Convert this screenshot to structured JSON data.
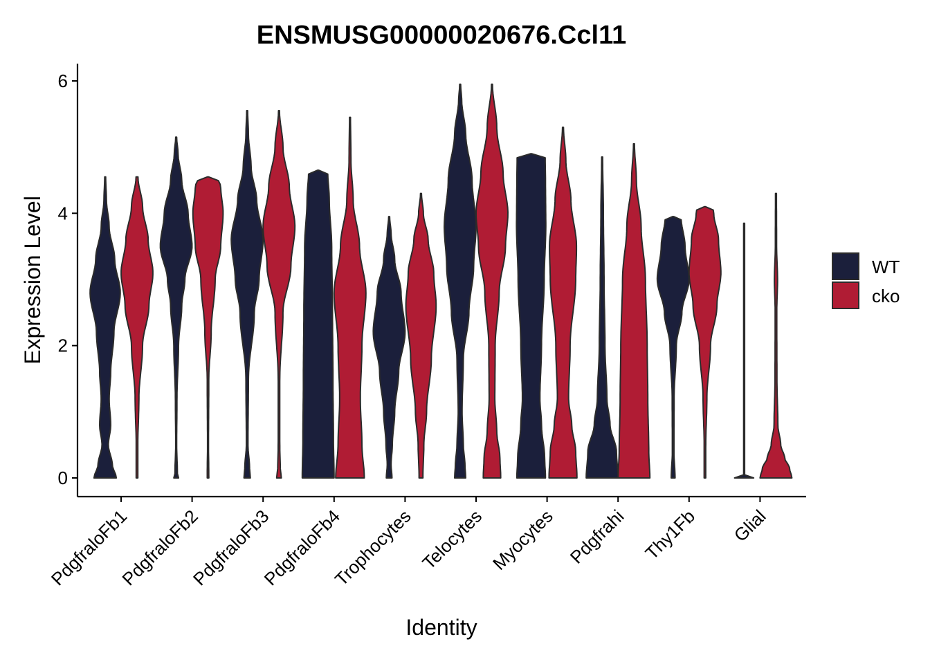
{
  "chart_data": {
    "type": "violin",
    "title": "ENSMUSG00000020676.Ccl11",
    "xlabel": "Identity",
    "ylabel": "Expression Level",
    "ylim": [
      -0.3,
      6.3
    ],
    "yticks": [
      0,
      2,
      4,
      6
    ],
    "grid": false,
    "legend_position": "right",
    "categories": [
      "PdgfraloFb1",
      "PdgfraloFb2",
      "PdgfraloFb3",
      "PdgfraloFb4",
      "Trophocytes",
      "Telocytes",
      "Myocytes",
      "Pdgfrahi",
      "Thy1Fb",
      "Glial"
    ],
    "series": [
      {
        "name": "WT",
        "color": "#1b1f3b",
        "violins": [
          {
            "max": 4.55,
            "profile": [
              [
                0,
                0.7
              ],
              [
                0.2,
                0.45
              ],
              [
                0.5,
                0.2
              ],
              [
                0.8,
                0.35
              ],
              [
                1.2,
                0.25
              ],
              [
                1.6,
                0.35
              ],
              [
                2.2,
                0.55
              ],
              [
                2.8,
                0.95
              ],
              [
                3.3,
                0.6
              ],
              [
                3.8,
                0.25
              ],
              [
                4.2,
                0.08
              ],
              [
                4.55,
                0.03
              ]
            ]
          },
          {
            "max": 5.15,
            "profile": [
              [
                0,
                0.15
              ],
              [
                0.05,
                0.08
              ],
              [
                0.5,
                0.03
              ],
              [
                1.2,
                0.05
              ],
              [
                2.0,
                0.15
              ],
              [
                2.6,
                0.35
              ],
              [
                3.0,
                0.55
              ],
              [
                3.5,
                1.0
              ],
              [
                4.0,
                0.75
              ],
              [
                4.5,
                0.35
              ],
              [
                4.9,
                0.12
              ],
              [
                5.15,
                0.03
              ]
            ]
          },
          {
            "max": 5.55,
            "profile": [
              [
                0,
                0.2
              ],
              [
                0.15,
                0.15
              ],
              [
                0.5,
                0.05
              ],
              [
                1.5,
                0.08
              ],
              [
                2.5,
                0.45
              ],
              [
                3.0,
                0.75
              ],
              [
                3.6,
                1.0
              ],
              [
                4.2,
                0.6
              ],
              [
                4.7,
                0.25
              ],
              [
                5.2,
                0.08
              ],
              [
                5.55,
                0.03
              ]
            ]
          },
          {
            "max": 4.65,
            "profile": [
              [
                0,
                1.0
              ],
              [
                0.6,
                0.96
              ],
              [
                1.5,
                0.93
              ],
              [
                2.5,
                0.9
              ],
              [
                3.5,
                0.85
              ],
              [
                4.2,
                0.7
              ],
              [
                4.64,
                0.6
              ],
              [
                4.65,
                0.03
              ]
            ]
          },
          {
            "max": 3.95,
            "profile": [
              [
                0,
                0.18
              ],
              [
                0.2,
                0.12
              ],
              [
                0.5,
                0.2
              ],
              [
                1.0,
                0.35
              ],
              [
                1.6,
                0.6
              ],
              [
                2.2,
                1.0
              ],
              [
                2.8,
                0.75
              ],
              [
                3.3,
                0.35
              ],
              [
                3.7,
                0.12
              ],
              [
                3.95,
                0.03
              ]
            ]
          },
          {
            "max": 5.95,
            "profile": [
              [
                0,
                0.35
              ],
              [
                0.2,
                0.3
              ],
              [
                0.5,
                0.2
              ],
              [
                1.0,
                0.12
              ],
              [
                1.8,
                0.2
              ],
              [
                2.5,
                0.55
              ],
              [
                3.2,
                0.85
              ],
              [
                3.8,
                1.0
              ],
              [
                4.5,
                0.75
              ],
              [
                5.2,
                0.35
              ],
              [
                5.7,
                0.1
              ],
              [
                5.95,
                0.03
              ]
            ]
          },
          {
            "max": 4.9,
            "profile": [
              [
                0,
                0.9
              ],
              [
                0.3,
                0.85
              ],
              [
                0.8,
                0.65
              ],
              [
                1.2,
                0.55
              ],
              [
                2.0,
                0.65
              ],
              [
                3.0,
                0.82
              ],
              [
                3.8,
                0.92
              ],
              [
                4.5,
                0.9
              ],
              [
                4.89,
                0.88
              ],
              [
                4.9,
                0.03
              ]
            ]
          },
          {
            "max": 4.85,
            "profile": [
              [
                0,
                1.0
              ],
              [
                0.4,
                0.9
              ],
              [
                0.8,
                0.5
              ],
              [
                1.2,
                0.3
              ],
              [
                2.0,
                0.18
              ],
              [
                3.0,
                0.12
              ],
              [
                4.0,
                0.08
              ],
              [
                4.85,
                0.03
              ]
            ]
          },
          {
            "max": 3.95,
            "profile": [
              [
                0,
                0.12
              ],
              [
                0.4,
                0.05
              ],
              [
                1.2,
                0.06
              ],
              [
                2.0,
                0.2
              ],
              [
                2.5,
                0.55
              ],
              [
                3.0,
                1.0
              ],
              [
                3.5,
                0.75
              ],
              [
                3.94,
                0.5
              ],
              [
                3.95,
                0.03
              ]
            ]
          },
          {
            "max": 3.85,
            "profile": [
              [
                0,
                0.6
              ],
              [
                0.015,
                0.6
              ],
              [
                0.03,
                0.03
              ],
              [
                3.85,
                0.03
              ]
            ]
          }
        ]
      },
      {
        "name": "cko",
        "color": "#b01c34",
        "violins": [
          {
            "max": 4.55,
            "profile": [
              [
                0,
                0.05
              ],
              [
                0.5,
                0.05
              ],
              [
                1.2,
                0.12
              ],
              [
                2.0,
                0.35
              ],
              [
                2.6,
                0.75
              ],
              [
                3.1,
                1.0
              ],
              [
                3.6,
                0.7
              ],
              [
                4.1,
                0.35
              ],
              [
                4.55,
                0.06
              ]
            ]
          },
          {
            "max": 4.55,
            "profile": [
              [
                0,
                0.05
              ],
              [
                0.5,
                0.03
              ],
              [
                1.5,
                0.05
              ],
              [
                2.2,
                0.2
              ],
              [
                3.0,
                0.45
              ],
              [
                3.5,
                0.8
              ],
              [
                4.0,
                0.95
              ],
              [
                4.4,
                0.8
              ],
              [
                4.54,
                0.6
              ],
              [
                4.55,
                0.03
              ]
            ]
          },
          {
            "max": 5.55,
            "profile": [
              [
                0,
                0.15
              ],
              [
                0.15,
                0.08
              ],
              [
                0.5,
                0.05
              ],
              [
                1.5,
                0.05
              ],
              [
                2.5,
                0.25
              ],
              [
                3.2,
                0.75
              ],
              [
                3.8,
                1.0
              ],
              [
                4.4,
                0.65
              ],
              [
                5.0,
                0.25
              ],
              [
                5.55,
                0.03
              ]
            ]
          },
          {
            "max": 5.45,
            "profile": [
              [
                0,
                0.9
              ],
              [
                0.5,
                0.75
              ],
              [
                1.2,
                0.65
              ],
              [
                2.0,
                0.75
              ],
              [
                2.8,
                1.0
              ],
              [
                3.5,
                0.6
              ],
              [
                4.2,
                0.2
              ],
              [
                4.8,
                0.06
              ],
              [
                5.45,
                0.03
              ]
            ]
          },
          {
            "max": 4.3,
            "profile": [
              [
                0,
                0.12
              ],
              [
                0.5,
                0.18
              ],
              [
                1.0,
                0.35
              ],
              [
                1.8,
                0.65
              ],
              [
                2.6,
                0.95
              ],
              [
                3.1,
                0.8
              ],
              [
                3.6,
                0.45
              ],
              [
                4.0,
                0.15
              ],
              [
                4.3,
                0.03
              ]
            ]
          },
          {
            "max": 5.95,
            "profile": [
              [
                0,
                0.55
              ],
              [
                0.3,
                0.5
              ],
              [
                0.7,
                0.3
              ],
              [
                1.2,
                0.18
              ],
              [
                2.0,
                0.2
              ],
              [
                2.8,
                0.45
              ],
              [
                3.5,
                0.85
              ],
              [
                4.0,
                1.0
              ],
              [
                4.6,
                0.7
              ],
              [
                5.3,
                0.3
              ],
              [
                5.95,
                0.03
              ]
            ]
          },
          {
            "max": 5.3,
            "profile": [
              [
                0,
                0.88
              ],
              [
                0.4,
                0.8
              ],
              [
                0.8,
                0.55
              ],
              [
                1.2,
                0.35
              ],
              [
                2.0,
                0.45
              ],
              [
                3.0,
                0.8
              ],
              [
                3.5,
                0.85
              ],
              [
                4.2,
                0.5
              ],
              [
                4.8,
                0.18
              ],
              [
                5.3,
                0.03
              ]
            ]
          },
          {
            "max": 5.05,
            "profile": [
              [
                0,
                1.0
              ],
              [
                0.4,
                0.93
              ],
              [
                1.2,
                0.87
              ],
              [
                2.0,
                0.83
              ],
              [
                3.0,
                0.72
              ],
              [
                3.8,
                0.45
              ],
              [
                4.5,
                0.15
              ],
              [
                5.05,
                0.03
              ]
            ]
          },
          {
            "max": 4.1,
            "profile": [
              [
                0,
                0.05
              ],
              [
                0.5,
                0.05
              ],
              [
                1.2,
                0.12
              ],
              [
                2.0,
                0.35
              ],
              [
                2.6,
                0.75
              ],
              [
                3.1,
                1.0
              ],
              [
                3.6,
                0.85
              ],
              [
                4.0,
                0.55
              ],
              [
                4.09,
                0.5
              ],
              [
                4.1,
                0.03
              ]
            ]
          },
          {
            "max": 4.3,
            "profile": [
              [
                0,
                1.0
              ],
              [
                0.15,
                0.85
              ],
              [
                0.3,
                0.55
              ],
              [
                0.5,
                0.3
              ],
              [
                0.8,
                0.12
              ],
              [
                1.5,
                0.06
              ],
              [
                2.5,
                0.05
              ],
              [
                3.0,
                0.1
              ],
              [
                3.5,
                0.04
              ],
              [
                4.3,
                0.03
              ]
            ]
          }
        ]
      }
    ]
  }
}
